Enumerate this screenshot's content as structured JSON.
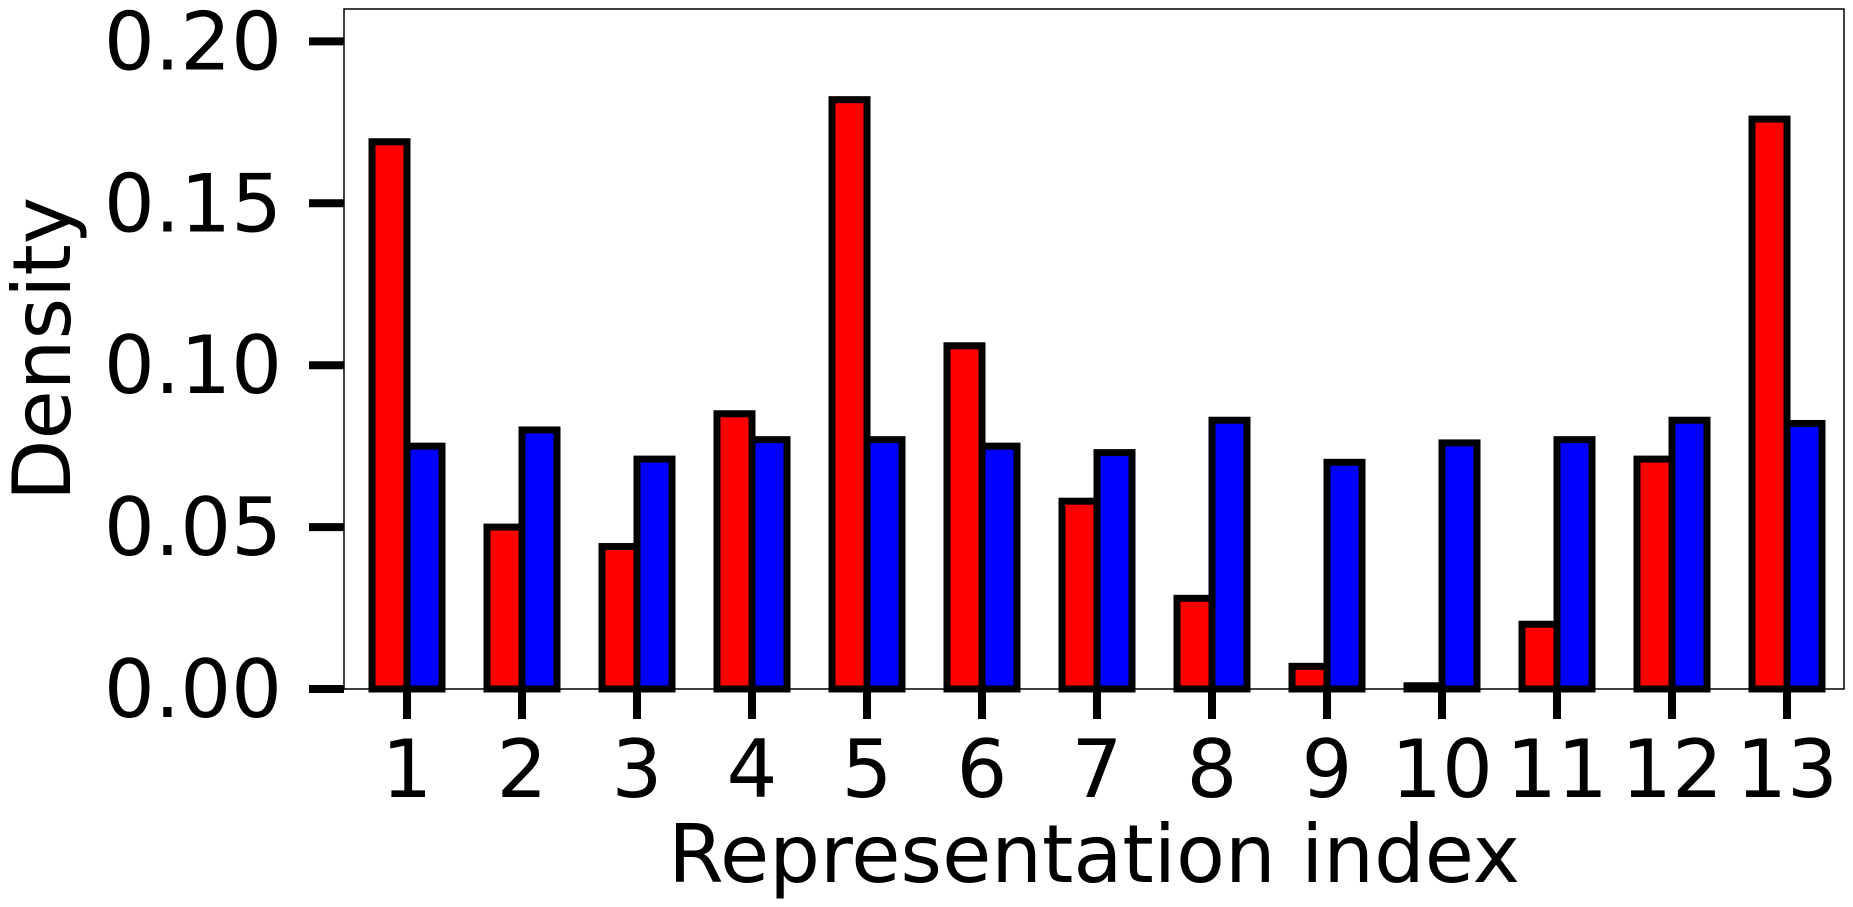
{
  "chart_data": {
    "type": "bar",
    "title": "",
    "xlabel": "Representation index",
    "ylabel": "Density",
    "categories": [
      "1",
      "2",
      "3",
      "4",
      "5",
      "6",
      "7",
      "8",
      "9",
      "10",
      "11",
      "12",
      "13"
    ],
    "series": [
      {
        "color": "#ff0000",
        "values": [
          0.169,
          0.05,
          0.044,
          0.085,
          0.182,
          0.106,
          0.058,
          0.028,
          0.007,
          0.001,
          0.02,
          0.071,
          0.176
        ]
      },
      {
        "color": "#0000ff",
        "values": [
          0.075,
          0.08,
          0.071,
          0.077,
          0.077,
          0.075,
          0.073,
          0.083,
          0.07,
          0.076,
          0.077,
          0.083,
          0.082
        ]
      }
    ],
    "yticks": [
      "0.00",
      "0.05",
      "0.10",
      "0.15",
      "0.20"
    ],
    "ytick_values": [
      0,
      0.05,
      0.1,
      0.15,
      0.2
    ],
    "ylim": [
      0,
      0.21
    ],
    "grid": false,
    "legend": "none",
    "bar_edge_color": "#000000"
  }
}
